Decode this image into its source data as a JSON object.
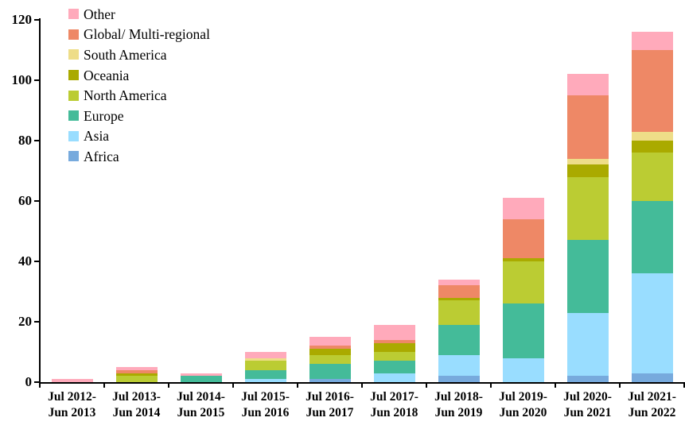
{
  "chart_data": {
    "type": "bar",
    "stacked": true,
    "title": "",
    "xlabel": "",
    "ylabel": "",
    "ylim": [
      0,
      120
    ],
    "ytick_step": 20,
    "yticks": [
      "0",
      "20",
      "40",
      "60",
      "80",
      "100",
      "120"
    ],
    "grid": false,
    "legend_position": "top-left-inside",
    "categories": [
      "Jul 2012-\nJun 2013",
      "Jul 2013-\nJun 2014",
      "Jul 2014-\nJun 2015",
      "Jul 2015-\nJun 2016",
      "Jul 2016-\nJun 2017",
      "Jul 2017-\nJun 2018",
      "Jul 2018-\nJun 2019",
      "Jul 2019-\nJun 2020",
      "Jul 2020-\nJun 2021",
      "Jul 2021-\nJun 2022"
    ],
    "series": [
      {
        "name": "Other",
        "color": "#FFAABB",
        "values": [
          1,
          1,
          1,
          2,
          3,
          5,
          2,
          7,
          7,
          6
        ]
      },
      {
        "name": "Global/ Multi-regional",
        "color": "#EE8866",
        "values": [
          0,
          1,
          0,
          0,
          1,
          1,
          4,
          13,
          21,
          27
        ]
      },
      {
        "name": "South America",
        "color": "#EEDD88",
        "values": [
          0,
          0,
          0,
          1,
          0,
          0,
          0,
          0,
          2,
          3
        ]
      },
      {
        "name": "Oceania",
        "color": "#AAAA00",
        "values": [
          0,
          1,
          0,
          0,
          2,
          3,
          1,
          1,
          4,
          4
        ]
      },
      {
        "name": "North America",
        "color": "#BBCC33",
        "values": [
          0,
          2,
          0,
          3,
          3,
          3,
          8,
          14,
          21,
          16
        ]
      },
      {
        "name": "Europe",
        "color": "#44BB99",
        "values": [
          0,
          0,
          2,
          3,
          5,
          4,
          10,
          18,
          24,
          24
        ]
      },
      {
        "name": "Asia",
        "color": "#99DDFF",
        "values": [
          0,
          0,
          0,
          1,
          0,
          3,
          7,
          8,
          21,
          33
        ]
      },
      {
        "name": "Africa",
        "color": "#77AADD",
        "values": [
          0,
          0,
          0,
          0,
          1,
          0,
          2,
          0,
          2,
          3
        ]
      }
    ],
    "bar_totals": [
      1,
      5,
      3,
      10,
      15,
      19,
      34,
      61,
      102,
      116
    ],
    "axis_color": "#000000",
    "background_color": "#FFFFFF"
  }
}
